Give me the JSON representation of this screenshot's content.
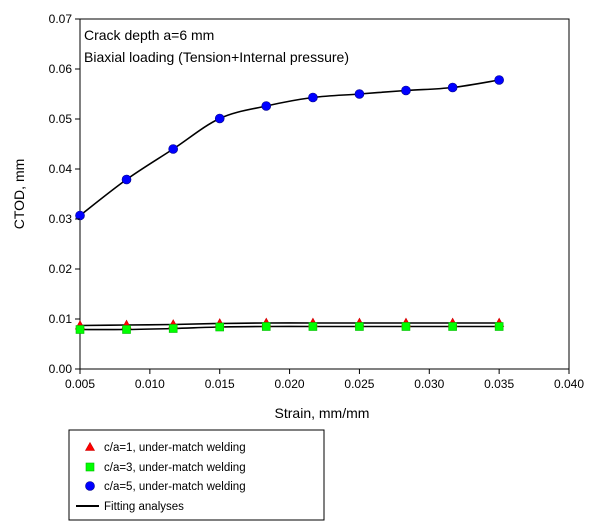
{
  "chart_data": {
    "type": "scatter",
    "title": "",
    "annotations": [
      "Crack depth a=6 mm",
      "Biaxial loading (Tension+Internal pressure)"
    ],
    "xlabel": "Strain, mm/mm",
    "ylabel": "CTOD, mm",
    "xlim": [
      0.005,
      0.04
    ],
    "ylim": [
      0,
      0.07
    ],
    "xticks": [
      "0.005",
      "0.010",
      "0.015",
      "0.020",
      "0.025",
      "0.030",
      "0.035",
      "0.040"
    ],
    "yticks": [
      "0.00",
      "0.01",
      "0.02",
      "0.03",
      "0.04",
      "0.05",
      "0.06",
      "0.07"
    ],
    "grid": false,
    "legend_placement": "below chart, left",
    "x": [
      0.005,
      0.00833,
      0.01167,
      0.015,
      0.01833,
      0.02167,
      0.025,
      0.02833,
      0.03167,
      0.035
    ],
    "series": [
      {
        "name": "c/a=1, under-match welding",
        "marker": "triangle",
        "color": "#ff0000",
        "values": [
          0.0087,
          0.0088,
          0.0089,
          0.0091,
          0.0092,
          0.0092,
          0.0092,
          0.0092,
          0.0092,
          0.0092
        ]
      },
      {
        "name": "c/a=3, under-match welding",
        "marker": "square",
        "color": "#00ff00",
        "values": [
          0.0079,
          0.0079,
          0.0081,
          0.0084,
          0.0085,
          0.0085,
          0.0085,
          0.0085,
          0.0085,
          0.0085
        ]
      },
      {
        "name": "c/a=5, under-match welding",
        "marker": "circle",
        "color": "#0000ff",
        "values": [
          0.0307,
          0.0379,
          0.044,
          0.0501,
          0.0526,
          0.0543,
          0.055,
          0.0557,
          0.0563,
          0.0578
        ]
      }
    ],
    "fit_legend": "Fitting analyses",
    "fit_color": "#000000"
  }
}
